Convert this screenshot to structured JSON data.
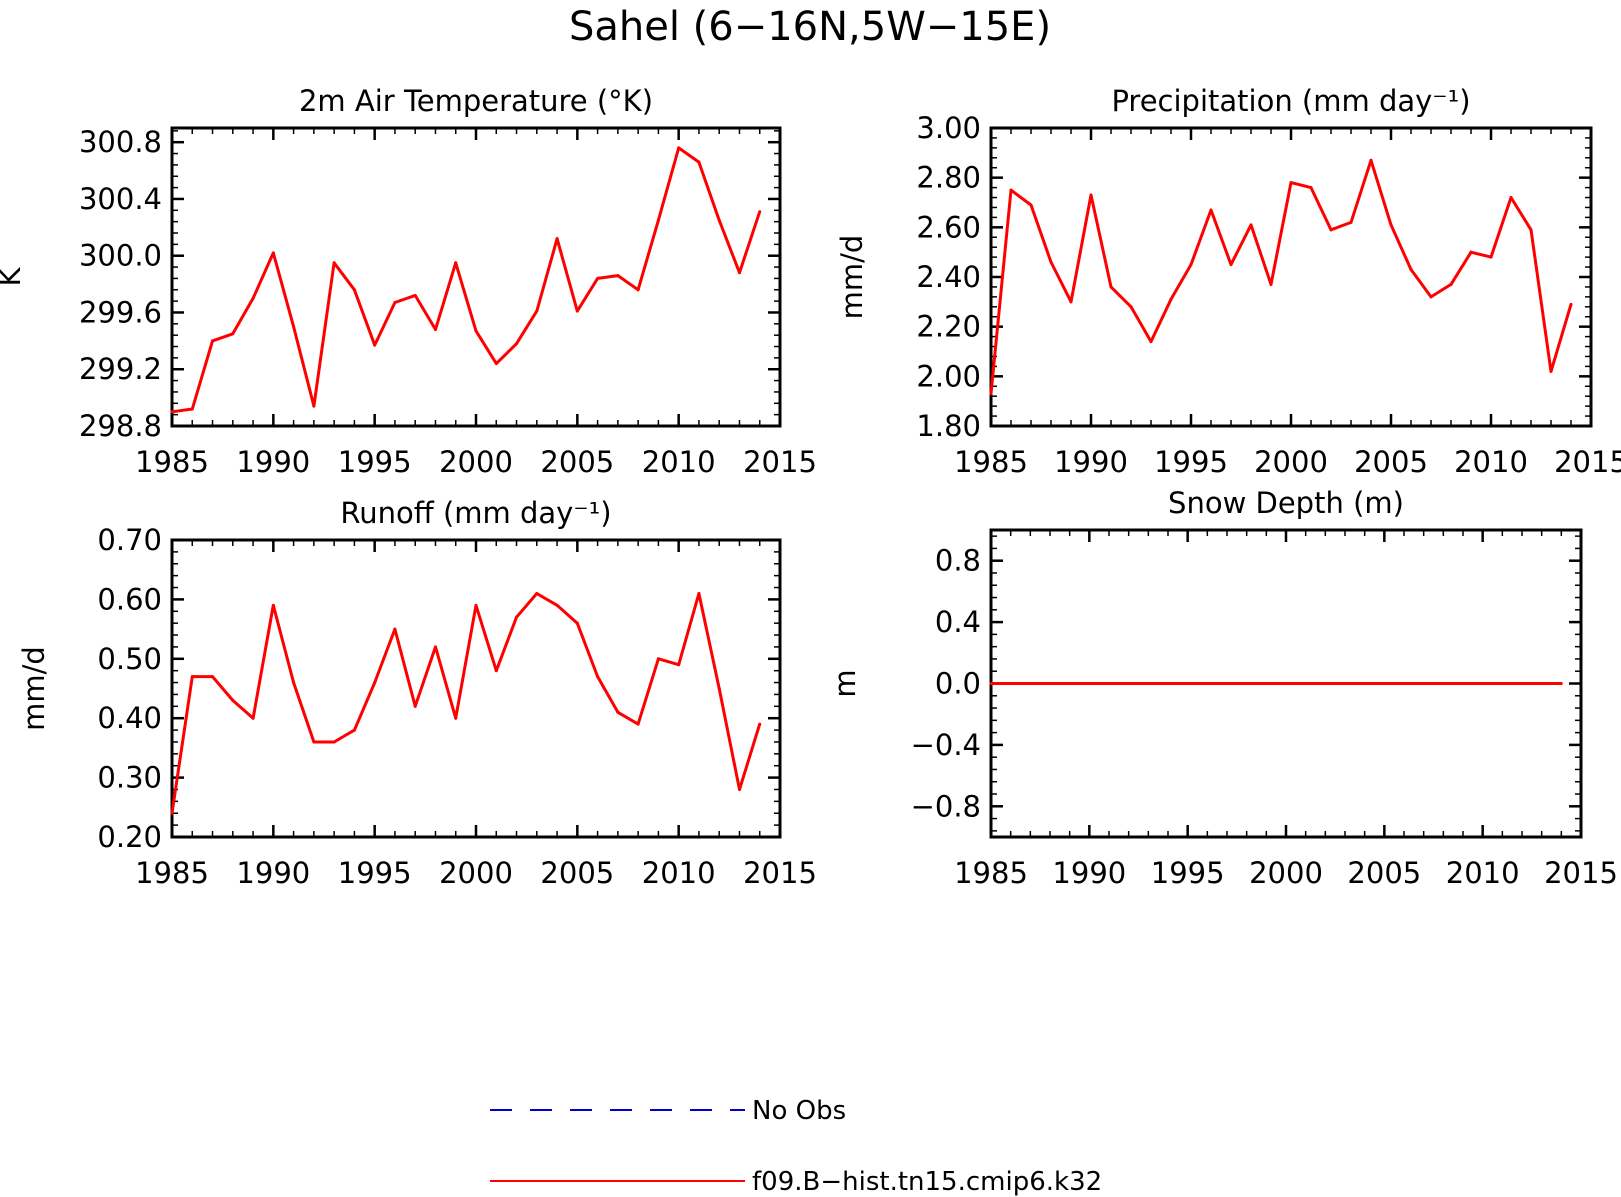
{
  "title": "Sahel (6−16N,5W−15E)",
  "legend": {
    "items": [
      {
        "label": "No Obs",
        "color": "#0000cc",
        "dash": "dashed"
      },
      {
        "label": "f09.B−hist.tn15.cmip6.k32",
        "color": "#ff0000",
        "dash": "solid"
      }
    ]
  },
  "chart_data": [
    {
      "type": "line",
      "title": "2m Air Temperature (°K)",
      "xlabel": "",
      "ylabel": "K",
      "xlim": [
        1985,
        2015
      ],
      "ylim": [
        298.8,
        300.9
      ],
      "xticks": [
        "1985",
        "1990",
        "1995",
        "2000",
        "2005",
        "2010",
        "2015"
      ],
      "yticks": [
        "298.8",
        "299.2",
        "299.6",
        "300.0",
        "300.4",
        "300.8"
      ],
      "series": [
        {
          "color": "#ff0000",
          "x": [
            1985,
            1986,
            1987,
            1988,
            1989,
            1990,
            1991,
            1992,
            1993,
            1994,
            1995,
            1996,
            1997,
            1998,
            1999,
            2000,
            2001,
            2002,
            2003,
            2004,
            2005,
            2006,
            2007,
            2008,
            2009,
            2010,
            2011,
            2012,
            2013,
            2014
          ],
          "values": [
            298.9,
            298.92,
            299.4,
            299.45,
            299.7,
            300.02,
            299.5,
            298.94,
            299.95,
            299.76,
            299.37,
            299.67,
            299.72,
            299.48,
            299.95,
            299.47,
            299.24,
            299.38,
            299.61,
            300.12,
            299.61,
            299.84,
            299.86,
            299.76,
            300.25,
            300.76,
            300.66,
            300.25,
            299.88,
            300.31
          ]
        }
      ]
    },
    {
      "type": "line",
      "title": "Precipitation (mm day⁻¹)",
      "xlabel": "",
      "ylabel": "mm/d",
      "xlim": [
        1985,
        2015
      ],
      "ylim": [
        1.8,
        3.0
      ],
      "xticks": [
        "1985",
        "1990",
        "1995",
        "2000",
        "2005",
        "2010",
        "2015"
      ],
      "yticks": [
        "1.80",
        "2.00",
        "2.20",
        "2.40",
        "2.60",
        "2.80",
        "3.00"
      ],
      "series": [
        {
          "color": "#ff0000",
          "x": [
            1985,
            1986,
            1987,
            1988,
            1989,
            1990,
            1991,
            1992,
            1993,
            1994,
            1995,
            1996,
            1997,
            1998,
            1999,
            2000,
            2001,
            2002,
            2003,
            2004,
            2005,
            2006,
            2007,
            2008,
            2009,
            2010,
            2011,
            2012,
            2013,
            2014
          ],
          "values": [
            1.93,
            2.75,
            2.69,
            2.46,
            2.3,
            2.73,
            2.36,
            2.28,
            2.14,
            2.31,
            2.45,
            2.67,
            2.45,
            2.61,
            2.37,
            2.78,
            2.76,
            2.59,
            2.62,
            2.87,
            2.61,
            2.43,
            2.32,
            2.37,
            2.5,
            2.48,
            2.72,
            2.59,
            2.02,
            2.29
          ]
        }
      ]
    },
    {
      "type": "line",
      "title": "Runoff (mm day⁻¹)",
      "xlabel": "",
      "ylabel": "mm/d",
      "xlim": [
        1985,
        2015
      ],
      "ylim": [
        0.2,
        0.7
      ],
      "xticks": [
        "1985",
        "1990",
        "1995",
        "2000",
        "2005",
        "2010",
        "2015"
      ],
      "yticks": [
        "0.20",
        "0.30",
        "0.40",
        "0.50",
        "0.60",
        "0.70"
      ],
      "series": [
        {
          "color": "#ff0000",
          "x": [
            1985,
            1986,
            1987,
            1988,
            1989,
            1990,
            1991,
            1992,
            1993,
            1994,
            1995,
            1996,
            1997,
            1998,
            1999,
            2000,
            2001,
            2002,
            2003,
            2004,
            2005,
            2006,
            2007,
            2008,
            2009,
            2010,
            2011,
            2012,
            2013,
            2014
          ],
          "values": [
            0.24,
            0.47,
            0.47,
            0.43,
            0.4,
            0.59,
            0.46,
            0.36,
            0.36,
            0.38,
            0.46,
            0.55,
            0.42,
            0.52,
            0.4,
            0.59,
            0.48,
            0.57,
            0.61,
            0.59,
            0.56,
            0.47,
            0.41,
            0.39,
            0.5,
            0.49,
            0.61,
            0.45,
            0.28,
            0.39
          ]
        }
      ]
    },
    {
      "type": "line",
      "title": "Snow Depth (m)",
      "xlabel": "",
      "ylabel": "m",
      "xlim": [
        1985,
        2015
      ],
      "ylim": [
        -1.0,
        1.0
      ],
      "xticks": [
        "1985",
        "1990",
        "1995",
        "2000",
        "2005",
        "2010",
        "2015"
      ],
      "yticks": [
        "−0.8",
        "−0.4",
        "0.0",
        "0.4",
        "0.8"
      ],
      "series": [
        {
          "color": "#ff0000",
          "x": [
            1985,
            1986,
            1987,
            1988,
            1989,
            1990,
            1991,
            1992,
            1993,
            1994,
            1995,
            1996,
            1997,
            1998,
            1999,
            2000,
            2001,
            2002,
            2003,
            2004,
            2005,
            2006,
            2007,
            2008,
            2009,
            2010,
            2011,
            2012,
            2013,
            2014
          ],
          "values": [
            0,
            0,
            0,
            0,
            0,
            0,
            0,
            0,
            0,
            0,
            0,
            0,
            0,
            0,
            0,
            0,
            0,
            0,
            0,
            0,
            0,
            0,
            0,
            0,
            0,
            0,
            0,
            0,
            0,
            0
          ]
        }
      ]
    }
  ]
}
